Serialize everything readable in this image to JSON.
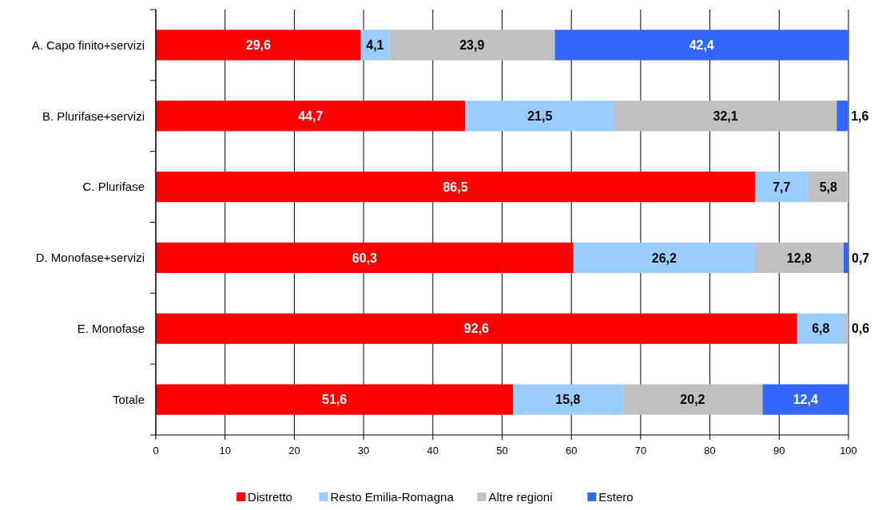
{
  "chart_data": {
    "type": "bar",
    "orientation": "horizontal",
    "stacked": true,
    "categories": [
      "A. Capo finito+servizi",
      "B. Plurifase+servizi",
      "C. Plurifase",
      "D. Monofase+servizi",
      "E. Monofase",
      "Totale"
    ],
    "series": [
      {
        "name": "Distretto",
        "color": "#ff0000",
        "values": [
          29.6,
          44.7,
          86.5,
          60.3,
          92.6,
          51.6
        ],
        "value_labels": [
          "29,6",
          "44,7",
          "86,5",
          "60,3",
          "92,6",
          "51,6"
        ]
      },
      {
        "name": "Resto Emilia-Romagna",
        "color": "#99ccff",
        "values": [
          4.1,
          21.5,
          7.7,
          26.2,
          6.8,
          15.8
        ],
        "value_labels": [
          "4,1",
          "21,5",
          "7,7",
          "26,2",
          "6,8",
          "15,8"
        ]
      },
      {
        "name": "Altre regioni",
        "color": "#c0c0c0",
        "values": [
          23.9,
          32.1,
          5.8,
          12.8,
          0.6,
          20.2
        ],
        "value_labels": [
          "23,9",
          "32,1",
          "5,8",
          "12,8",
          "0,6",
          "20,2"
        ]
      },
      {
        "name": "Estero",
        "color": "#3366ff",
        "values": [
          42.4,
          1.6,
          0,
          0.7,
          0,
          12.4
        ],
        "value_labels": [
          "42,4",
          "1,6",
          null,
          "0,7",
          null,
          "12,4"
        ]
      }
    ],
    "xlim": [
      0,
      100
    ],
    "xticks": [
      0,
      10,
      20,
      30,
      40,
      50,
      60,
      70,
      80,
      90,
      100
    ],
    "grid": "x",
    "legend": "bottom"
  }
}
